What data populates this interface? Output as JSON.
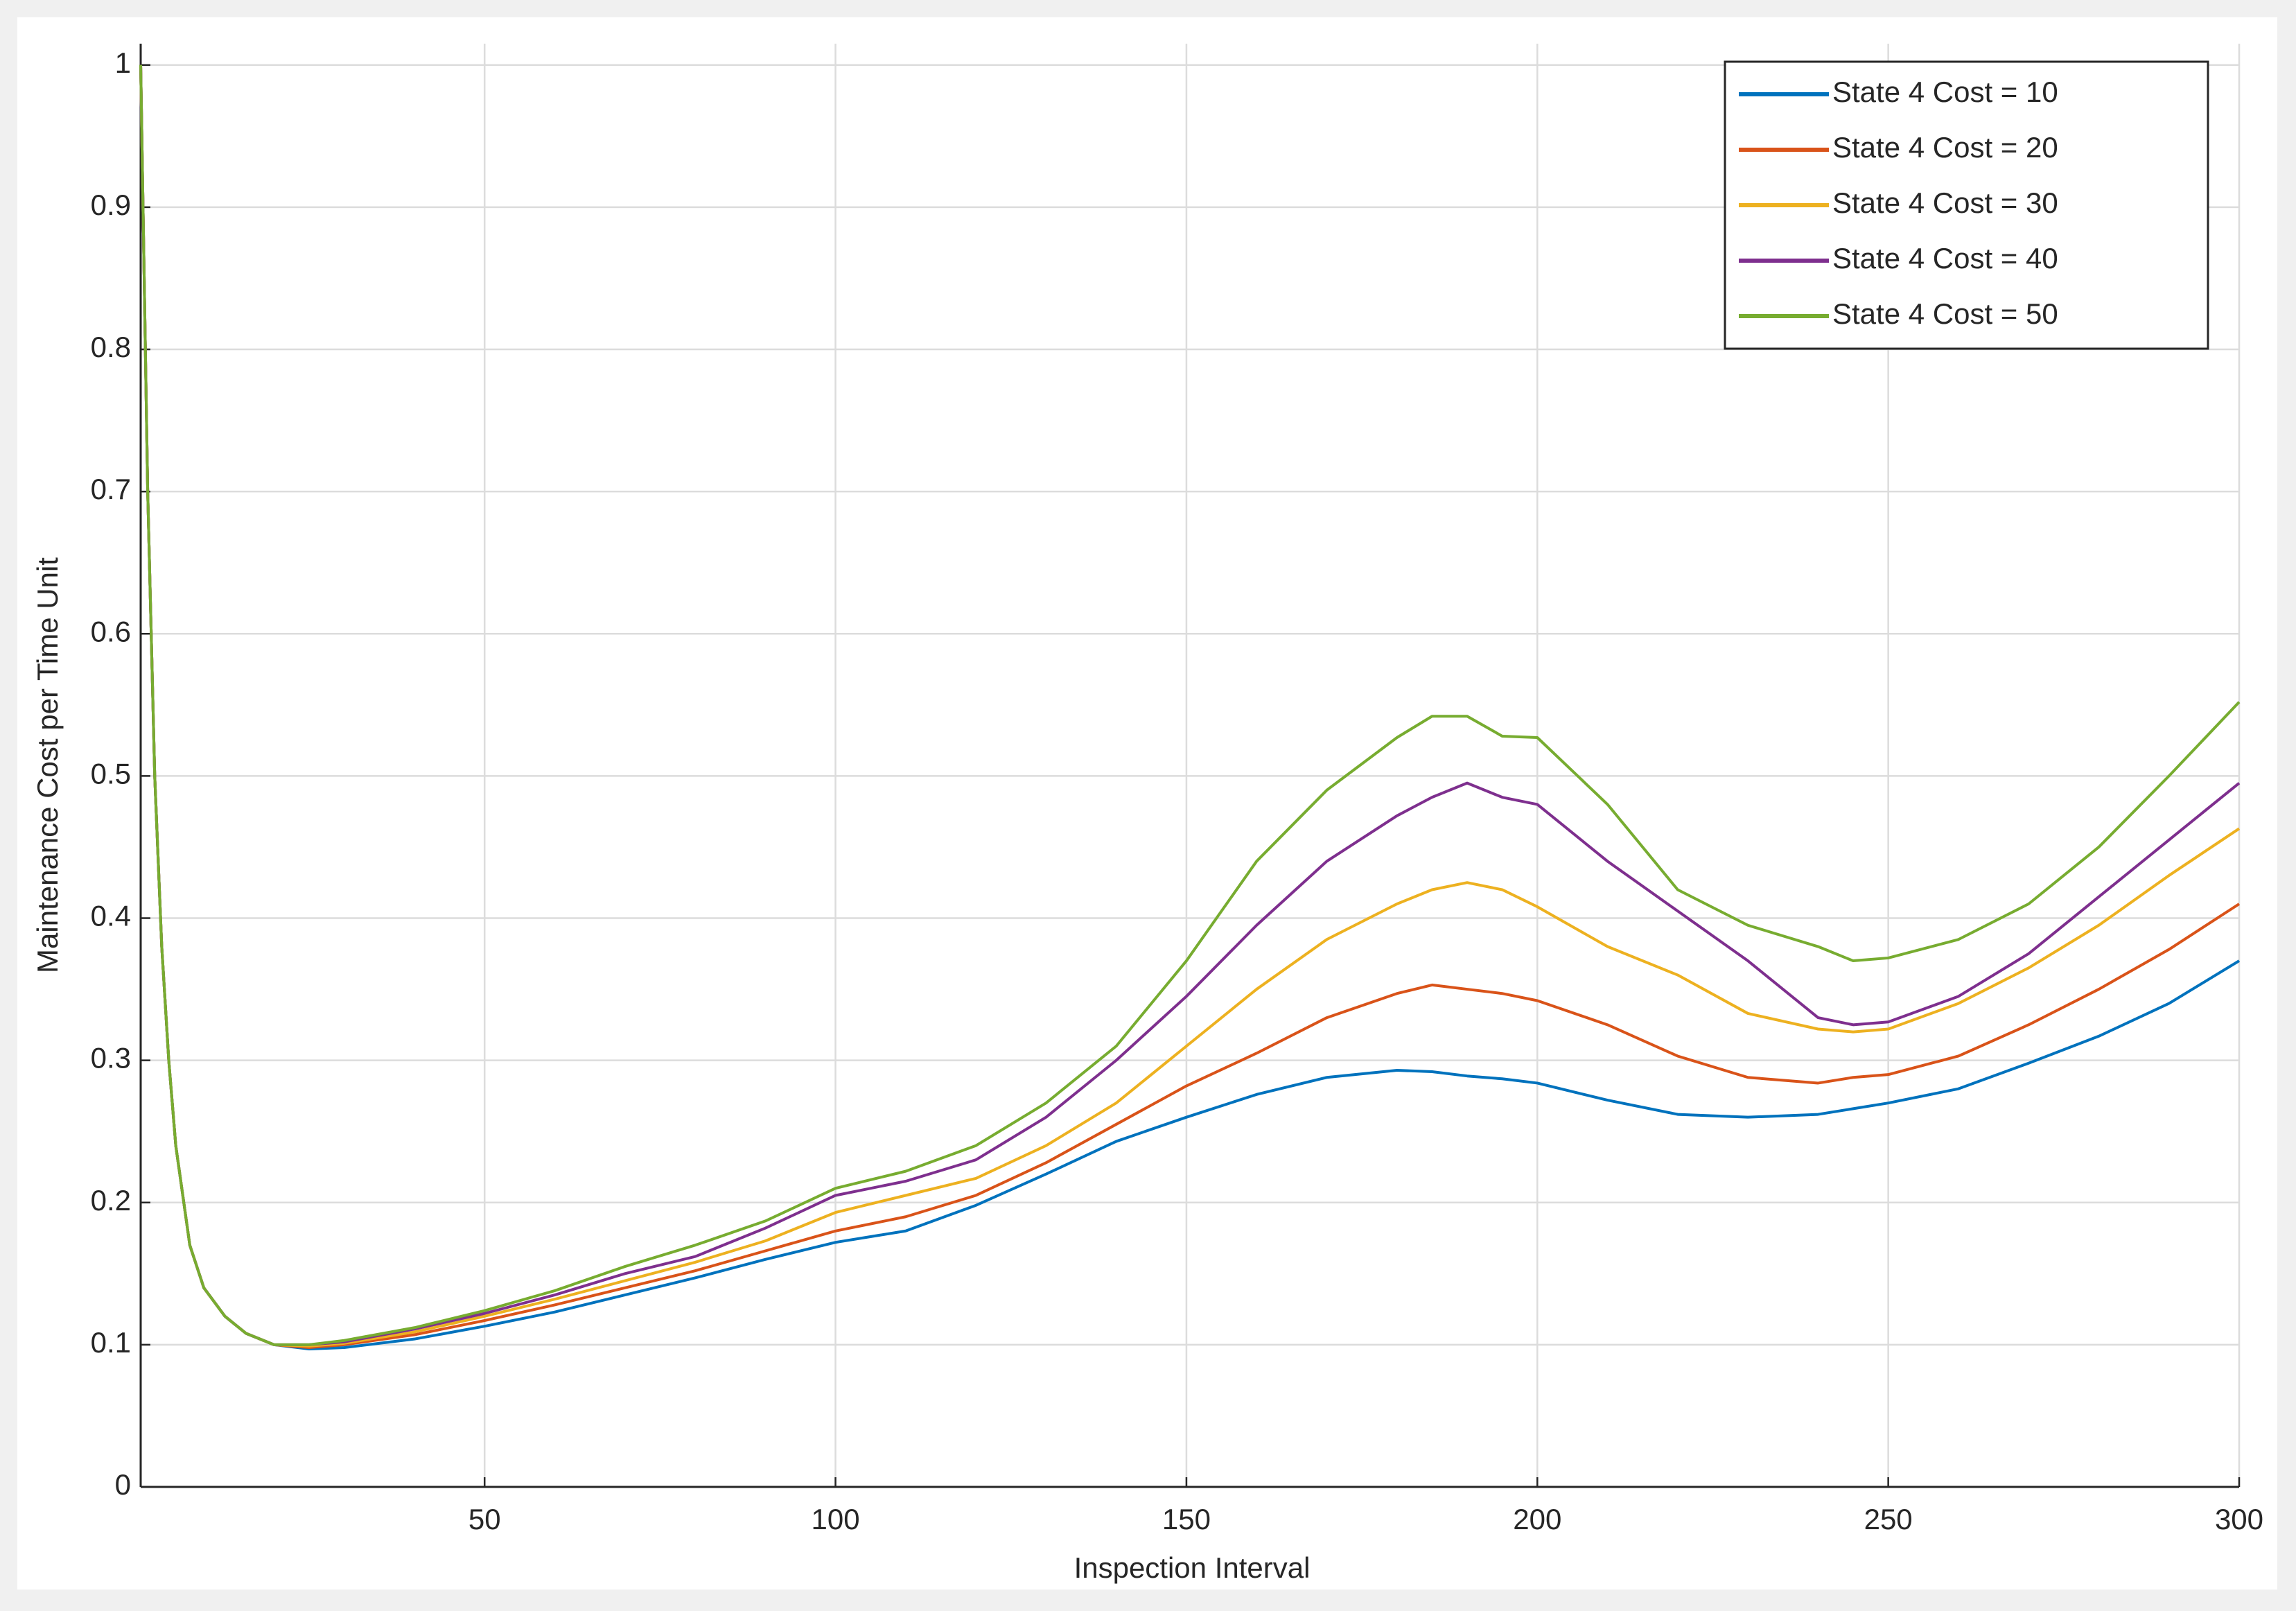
{
  "chart_data": {
    "type": "line",
    "xlabel": "Inspection Interval",
    "ylabel": "Maintenance Cost per Time Unit",
    "x": [
      1,
      2,
      3,
      4,
      5,
      6,
      8,
      10,
      13,
      16,
      20,
      25,
      30,
      40,
      50,
      60,
      70,
      80,
      90,
      100,
      110,
      120,
      130,
      140,
      150,
      160,
      170,
      180,
      185,
      190,
      195,
      200,
      210,
      220,
      230,
      240,
      245,
      250,
      260,
      270,
      280,
      290,
      300
    ],
    "series": [
      {
        "name": "State 4 Cost = 10",
        "color": "#0072bd",
        "values": [
          1.0,
          0.7,
          0.5,
          0.38,
          0.3,
          0.24,
          0.17,
          0.14,
          0.12,
          0.108,
          0.1,
          0.097,
          0.098,
          0.104,
          0.113,
          0.123,
          0.135,
          0.147,
          0.16,
          0.172,
          0.18,
          0.198,
          0.22,
          0.243,
          0.26,
          0.276,
          0.288,
          0.293,
          0.292,
          0.289,
          0.287,
          0.284,
          0.272,
          0.262,
          0.26,
          0.262,
          0.266,
          0.27,
          0.28,
          0.298,
          0.317,
          0.34,
          0.37
        ]
      },
      {
        "name": "State 4 Cost = 20",
        "color": "#d95319",
        "values": [
          1.0,
          0.7,
          0.5,
          0.38,
          0.3,
          0.24,
          0.17,
          0.14,
          0.12,
          0.108,
          0.1,
          0.098,
          0.1,
          0.107,
          0.117,
          0.128,
          0.14,
          0.152,
          0.166,
          0.18,
          0.19,
          0.205,
          0.228,
          0.255,
          0.282,
          0.305,
          0.33,
          0.347,
          0.353,
          0.35,
          0.347,
          0.342,
          0.325,
          0.303,
          0.288,
          0.284,
          0.288,
          0.29,
          0.303,
          0.325,
          0.35,
          0.378,
          0.41
        ]
      },
      {
        "name": "State 4 Cost = 30",
        "color": "#edb120",
        "values": [
          1.0,
          0.7,
          0.5,
          0.38,
          0.3,
          0.24,
          0.17,
          0.14,
          0.12,
          0.108,
          0.1,
          0.099,
          0.101,
          0.109,
          0.12,
          0.132,
          0.145,
          0.158,
          0.173,
          0.193,
          0.205,
          0.217,
          0.24,
          0.27,
          0.31,
          0.35,
          0.385,
          0.41,
          0.42,
          0.425,
          0.42,
          0.408,
          0.38,
          0.36,
          0.333,
          0.322,
          0.32,
          0.322,
          0.34,
          0.365,
          0.395,
          0.43,
          0.463
        ]
      },
      {
        "name": "State 4 Cost = 40",
        "color": "#7e2f8e",
        "values": [
          1.0,
          0.7,
          0.5,
          0.38,
          0.3,
          0.24,
          0.17,
          0.14,
          0.12,
          0.108,
          0.1,
          0.1,
          0.102,
          0.111,
          0.122,
          0.135,
          0.15,
          0.162,
          0.182,
          0.205,
          0.215,
          0.23,
          0.26,
          0.3,
          0.345,
          0.395,
          0.44,
          0.472,
          0.485,
          0.495,
          0.485,
          0.48,
          0.44,
          0.405,
          0.37,
          0.33,
          0.325,
          0.327,
          0.345,
          0.375,
          0.415,
          0.455,
          0.495
        ]
      },
      {
        "name": "State 4 Cost = 50",
        "color": "#77ac30",
        "values": [
          1.0,
          0.7,
          0.5,
          0.38,
          0.3,
          0.24,
          0.17,
          0.14,
          0.12,
          0.108,
          0.1,
          0.1,
          0.103,
          0.112,
          0.124,
          0.138,
          0.155,
          0.17,
          0.187,
          0.21,
          0.222,
          0.24,
          0.27,
          0.31,
          0.37,
          0.44,
          0.49,
          0.527,
          0.542,
          0.542,
          0.528,
          0.527,
          0.48,
          0.42,
          0.395,
          0.38,
          0.37,
          0.372,
          0.385,
          0.41,
          0.45,
          0.5,
          0.552
        ]
      }
    ],
    "xlim": [
      1,
      300
    ],
    "xticks": [
      50,
      100,
      150,
      200,
      250,
      300
    ],
    "ylim": [
      0,
      1.015
    ],
    "yticks": [
      0,
      0.1,
      0.2,
      0.3,
      0.4,
      0.5,
      0.6,
      0.7,
      0.8,
      0.9,
      1
    ],
    "grid": true,
    "legend": "top-right"
  }
}
